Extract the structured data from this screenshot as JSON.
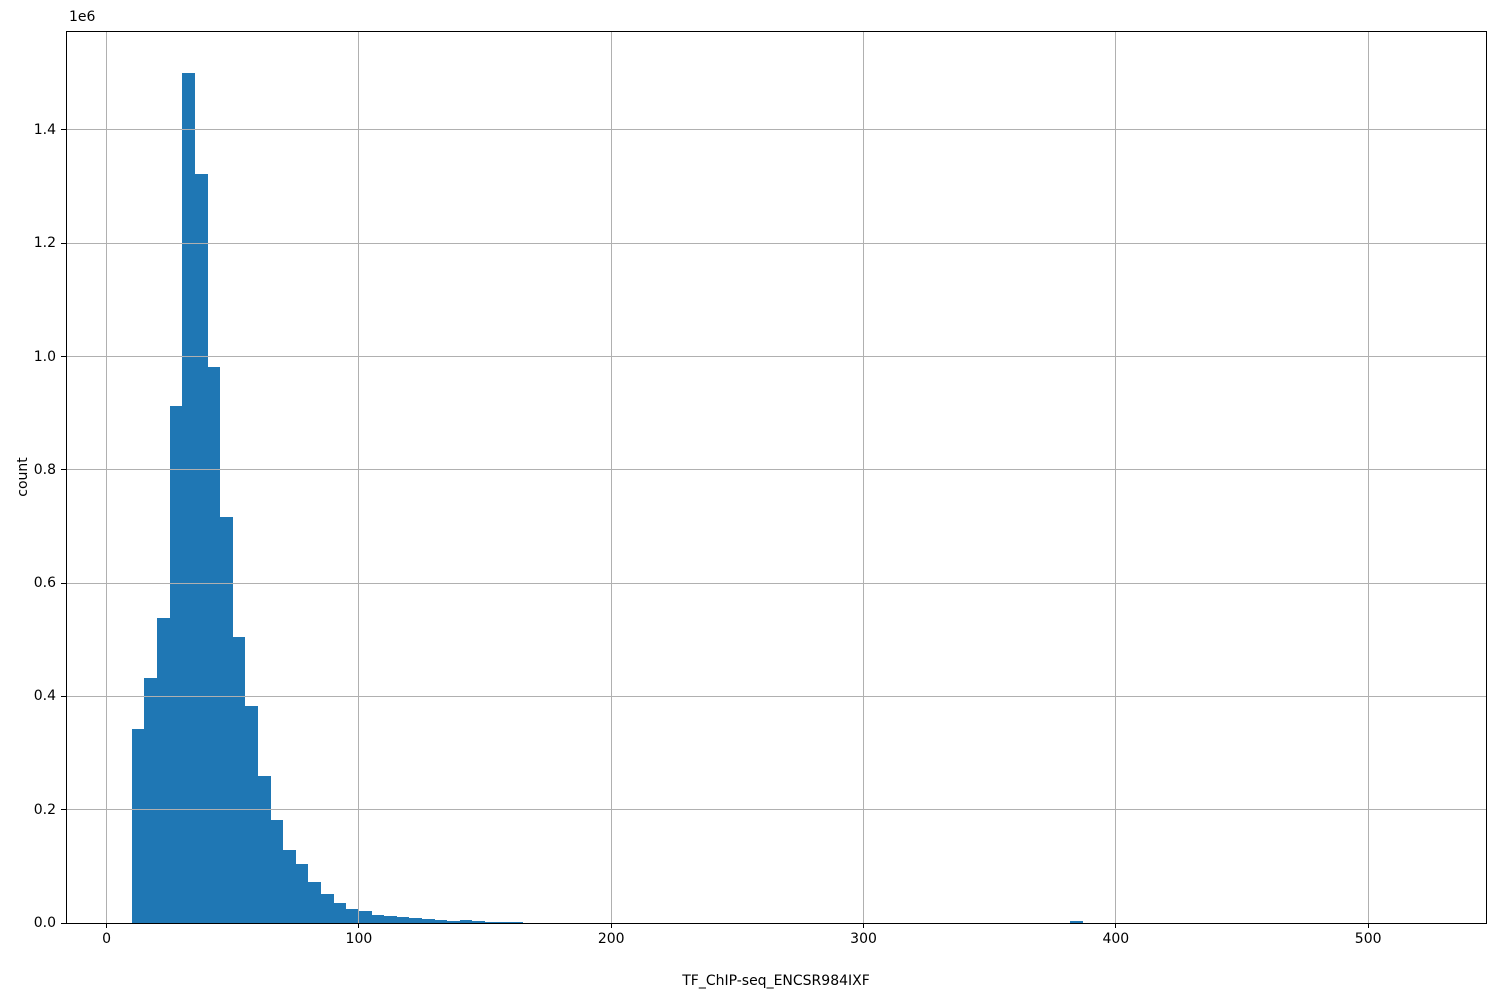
{
  "figure": {
    "background": "#ffffff",
    "offset_text": "1e6"
  },
  "chart_data": {
    "type": "bar",
    "subtype": "histogram",
    "title": "",
    "xlabel": "TF_ChIP-seq_ENCSR984IXF",
    "ylabel": "count",
    "y_offset_text": "1e6",
    "grid": true,
    "grid_above_bars": true,
    "legend": null,
    "xlim": [
      -15.7,
      546.7
    ],
    "ylim": [
      0,
      1573000
    ],
    "x_ticks": [
      0,
      100,
      200,
      300,
      400,
      500
    ],
    "x_tick_labels": [
      "0",
      "100",
      "200",
      "300",
      "400",
      "500"
    ],
    "y_ticks": [
      0,
      200000,
      400000,
      600000,
      800000,
      1000000,
      1200000,
      1400000
    ],
    "y_tick_labels": [
      "0.0",
      "0.2",
      "0.4",
      "0.6",
      "0.8",
      "1.0",
      "1.2",
      "1.4"
    ],
    "bin_width": 5,
    "bars": [
      {
        "x": 10,
        "count": 342000
      },
      {
        "x": 15,
        "count": 433000
      },
      {
        "x": 20,
        "count": 538000
      },
      {
        "x": 25,
        "count": 912000
      },
      {
        "x": 30,
        "count": 1500000
      },
      {
        "x": 35,
        "count": 1322000
      },
      {
        "x": 40,
        "count": 981000
      },
      {
        "x": 45,
        "count": 717000
      },
      {
        "x": 50,
        "count": 505000
      },
      {
        "x": 55,
        "count": 384000
      },
      {
        "x": 60,
        "count": 259000
      },
      {
        "x": 65,
        "count": 182000
      },
      {
        "x": 70,
        "count": 129000
      },
      {
        "x": 75,
        "count": 105000
      },
      {
        "x": 80,
        "count": 72000
      },
      {
        "x": 85,
        "count": 52000
      },
      {
        "x": 90,
        "count": 36000
      },
      {
        "x": 95,
        "count": 25000
      },
      {
        "x": 100,
        "count": 22000
      },
      {
        "x": 105,
        "count": 14000
      },
      {
        "x": 110,
        "count": 12000
      },
      {
        "x": 115,
        "count": 10000
      },
      {
        "x": 120,
        "count": 8500
      },
      {
        "x": 125,
        "count": 7500
      },
      {
        "x": 130,
        "count": 5000
      },
      {
        "x": 135,
        "count": 4200
      },
      {
        "x": 140,
        "count": 5300
      },
      {
        "x": 145,
        "count": 3500
      },
      {
        "x": 150,
        "count": 2400
      },
      {
        "x": 155,
        "count": 1800
      },
      {
        "x": 160,
        "count": 1000
      },
      {
        "x": 382,
        "count": 3500
      }
    ],
    "colors": {
      "bar": "#1f77b4",
      "grid": "#b0b0b0",
      "spine": "#000000",
      "text": "#000000"
    }
  }
}
